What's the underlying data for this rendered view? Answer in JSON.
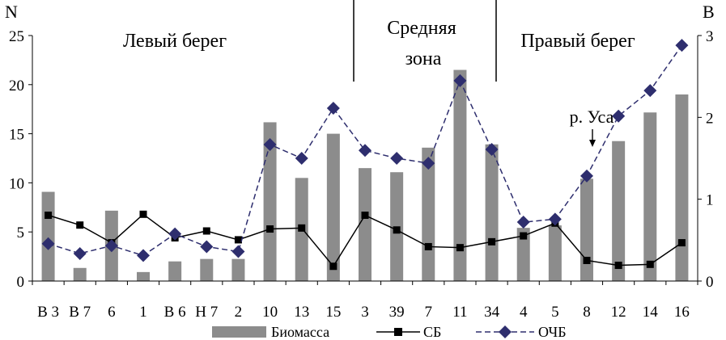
{
  "chart_data": {
    "type": "bar",
    "categories": [
      "В 3",
      "В 7",
      "6",
      "1",
      "В 6",
      "Н 7",
      "2",
      "10",
      "13",
      "15",
      "3",
      "39",
      "7",
      "11",
      "34",
      "4",
      "5",
      "8",
      "12",
      "14",
      "16"
    ],
    "ylabel_left": "N",
    "ylabel_right": "B",
    "ylim_left": [
      0,
      25
    ],
    "yticks_left": [
      "0",
      "5",
      "10",
      "15",
      "20",
      "25"
    ],
    "ylim_right": [
      0,
      3
    ],
    "yticks_right": [
      "0",
      "1",
      "2",
      "3"
    ],
    "grid": false,
    "legend_position": "bottom",
    "zones": [
      {
        "label_lines": [
          "Левый берег"
        ]
      },
      {
        "label_lines": [
          "Средняя",
          "зона"
        ]
      },
      {
        "label_lines": [
          "Правый берег"
        ]
      }
    ],
    "annotation": "р. Уса",
    "series": [
      {
        "name": "Биомасса",
        "type": "bar",
        "axis": "right",
        "color": "#8c8c8c",
        "values": [
          1.09,
          0.16,
          0.86,
          0.11,
          0.24,
          0.27,
          0.27,
          1.94,
          1.26,
          1.8,
          1.38,
          1.33,
          1.63,
          2.58,
          1.67,
          0.65,
          0.68,
          1.25,
          1.71,
          2.06,
          2.28
        ]
      },
      {
        "name": "СБ",
        "type": "line",
        "axis": "left",
        "color": "#000000",
        "marker": "square",
        "values": [
          6.7,
          5.7,
          3.9,
          6.8,
          4.4,
          5.1,
          4.2,
          5.3,
          5.4,
          1.5,
          6.7,
          5.2,
          3.5,
          3.4,
          4.0,
          4.6,
          5.9,
          2.1,
          1.6,
          1.7,
          3.9
        ]
      },
      {
        "name": "ОЧБ",
        "type": "line",
        "axis": "left",
        "color": "#2e2e6e",
        "marker": "diamond",
        "dashed": true,
        "values": [
          3.8,
          2.8,
          3.6,
          2.6,
          4.8,
          3.5,
          3.0,
          13.9,
          12.5,
          17.6,
          13.3,
          12.5,
          12.0,
          20.4,
          13.4,
          6.0,
          6.3,
          10.7,
          16.8,
          19.4,
          24.0
        ]
      }
    ]
  }
}
